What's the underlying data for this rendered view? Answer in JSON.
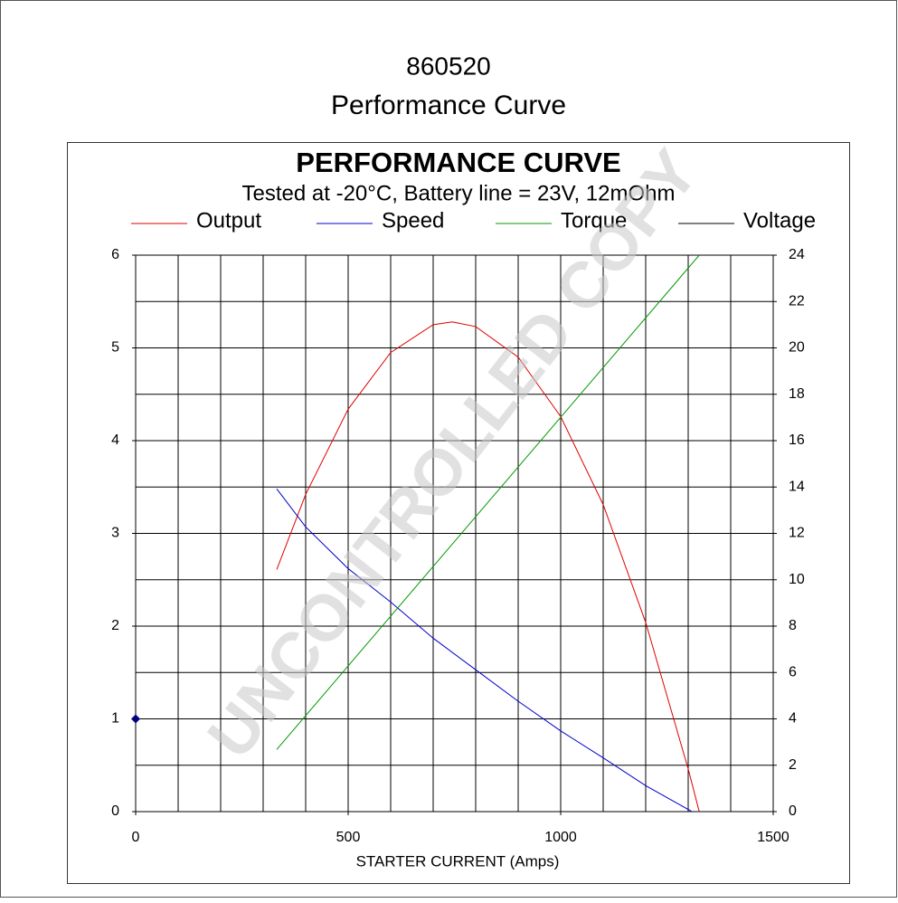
{
  "header": {
    "code": "860520",
    "title": "Performance Curve"
  },
  "chart_data": {
    "type": "line",
    "title": "PERFORMANCE CURVE",
    "subtitle": "Tested at -20°C, Battery line = 23V, 12mOhm",
    "x_label": "STARTER CURRENT (Amps)",
    "watermark": "UNCONTROLLED COPY",
    "xlim": [
      0,
      1500
    ],
    "xticks": [
      0,
      500,
      1000,
      1500
    ],
    "xgrid": [
      0,
      100,
      200,
      300,
      400,
      500,
      600,
      700,
      800,
      900,
      1000,
      1100,
      1200,
      1300,
      1400,
      1500
    ],
    "ylim": [
      0,
      6
    ],
    "yticks": [
      0,
      1,
      2,
      3,
      4,
      5,
      6
    ],
    "y2lim": [
      0,
      24
    ],
    "y2ticks": [
      0,
      2,
      4,
      6,
      8,
      10,
      12,
      14,
      16,
      18,
      20,
      22,
      24
    ],
    "grid": true,
    "series": [
      {
        "name": "Output",
        "color": "#e00000",
        "x": [
          332,
          400,
          500,
          600,
          700,
          745,
          800,
          900,
          1000,
          1100,
          1200,
          1300,
          1326
        ],
        "values": [
          2.61,
          3.42,
          4.34,
          4.95,
          5.25,
          5.28,
          5.23,
          4.9,
          4.26,
          3.31,
          2.04,
          0.46,
          0
        ]
      },
      {
        "name": "Speed",
        "color": "#0000cc",
        "x": [
          332,
          400,
          500,
          600,
          700,
          800,
          900,
          1000,
          1100,
          1200,
          1309
        ],
        "values": [
          3.48,
          3.07,
          2.62,
          2.26,
          1.87,
          1.53,
          1.19,
          0.87,
          0.58,
          0.28,
          0
        ]
      },
      {
        "name": "Torque",
        "color": "#009900",
        "x": [
          332,
          1326
        ],
        "values": [
          0.67,
          6
        ]
      },
      {
        "name": "Voltage",
        "color": "#000000",
        "marker_color": "#000080",
        "x": [
          0
        ],
        "values": [
          1
        ]
      }
    ]
  }
}
